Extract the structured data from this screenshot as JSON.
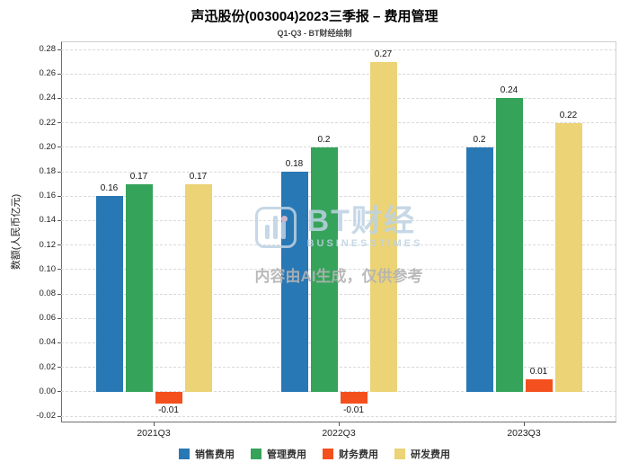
{
  "chart_data": {
    "type": "bar",
    "title": "声迅股份(003004)2023三季报 – 费用管理",
    "subtitle": "Q1-Q3 - BT财经绘制",
    "ylabel": "数额(人民币亿元)",
    "xlabel": "",
    "categories": [
      "2021Q3",
      "2022Q3",
      "2023Q3"
    ],
    "series": [
      {
        "name": "销售费用",
        "color": "#2878b5",
        "values": [
          0.16,
          0.18,
          0.2
        ]
      },
      {
        "name": "管理费用",
        "color": "#35a35a",
        "values": [
          0.17,
          0.2,
          0.24
        ]
      },
      {
        "name": "财务费用",
        "color": "#f4501e",
        "values": [
          -0.01,
          -0.01,
          0.01
        ]
      },
      {
        "name": "研发费用",
        "color": "#ebd376",
        "values": [
          0.17,
          0.27,
          0.22
        ]
      }
    ],
    "ylim": [
      -0.02,
      0.28
    ],
    "ytick_step": 0.02,
    "grid": true,
    "legend_position": "bottom"
  },
  "watermark": {
    "brand": "BT财经",
    "brand_sub": "BUSINESSTIMES",
    "disclaimer": "内容由AI生成，仅供参考"
  }
}
